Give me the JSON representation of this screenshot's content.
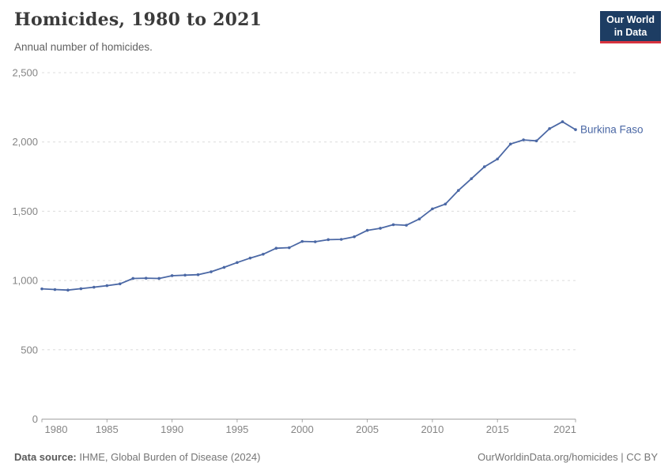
{
  "header": {
    "title": "Homicides, 1980 to 2021",
    "subtitle": "Annual number of homicides.",
    "logo": {
      "line1": "Our World",
      "line2": "in Data",
      "bg_color": "#1d3d63",
      "accent_color": "#d7333f"
    }
  },
  "chart_data": {
    "type": "line",
    "title": "Homicides, 1980 to 2021",
    "subtitle": "Annual number of homicides.",
    "xlabel": "",
    "ylabel": "",
    "xlim": [
      1980,
      2021
    ],
    "ylim": [
      0,
      2500
    ],
    "grid": "horizontal-dashed",
    "legend_position": "end-of-line-label",
    "x_ticks": [
      1980,
      1985,
      1990,
      1995,
      2000,
      2005,
      2010,
      2015,
      2021
    ],
    "y_ticks": [
      {
        "value": 0,
        "label": "0"
      },
      {
        "value": 500,
        "label": "500"
      },
      {
        "value": 1000,
        "label": "1,000"
      },
      {
        "value": 1500,
        "label": "1,500"
      },
      {
        "value": 2000,
        "label": "2,000"
      },
      {
        "value": 2500,
        "label": "2,500"
      }
    ],
    "series": [
      {
        "name": "Burkina Faso",
        "color": "#4b68a5",
        "years": [
          1980,
          1981,
          1982,
          1983,
          1984,
          1985,
          1986,
          1987,
          1988,
          1989,
          1990,
          1991,
          1992,
          1993,
          1994,
          1995,
          1996,
          1997,
          1998,
          1999,
          2000,
          2001,
          2002,
          2003,
          2004,
          2005,
          2006,
          2007,
          2008,
          2009,
          2010,
          2011,
          2012,
          2013,
          2014,
          2015,
          2016,
          2017,
          2018,
          2019,
          2020,
          2021
        ],
        "values": [
          940,
          935,
          931,
          941,
          952,
          963,
          976,
          1015,
          1017,
          1015,
          1035,
          1039,
          1042,
          1063,
          1095,
          1130,
          1162,
          1190,
          1233,
          1237,
          1282,
          1280,
          1295,
          1297,
          1316,
          1362,
          1377,
          1403,
          1399,
          1444,
          1517,
          1552,
          1650,
          1735,
          1821,
          1877,
          1985,
          2015,
          2008,
          2096,
          2146,
          2089
        ]
      }
    ]
  },
  "footer": {
    "source_label": "Data source:",
    "source_text": " IHME, Global Burden of Disease (2024)",
    "credit_text": "OurWorldinData.org/homicides | CC BY"
  },
  "colors": {
    "gridline": "#dcdcdc",
    "axis": "#a3a3a3",
    "tick_label": "#858585",
    "title_text": "#3b3b3b",
    "subtitle_text": "#616161"
  }
}
